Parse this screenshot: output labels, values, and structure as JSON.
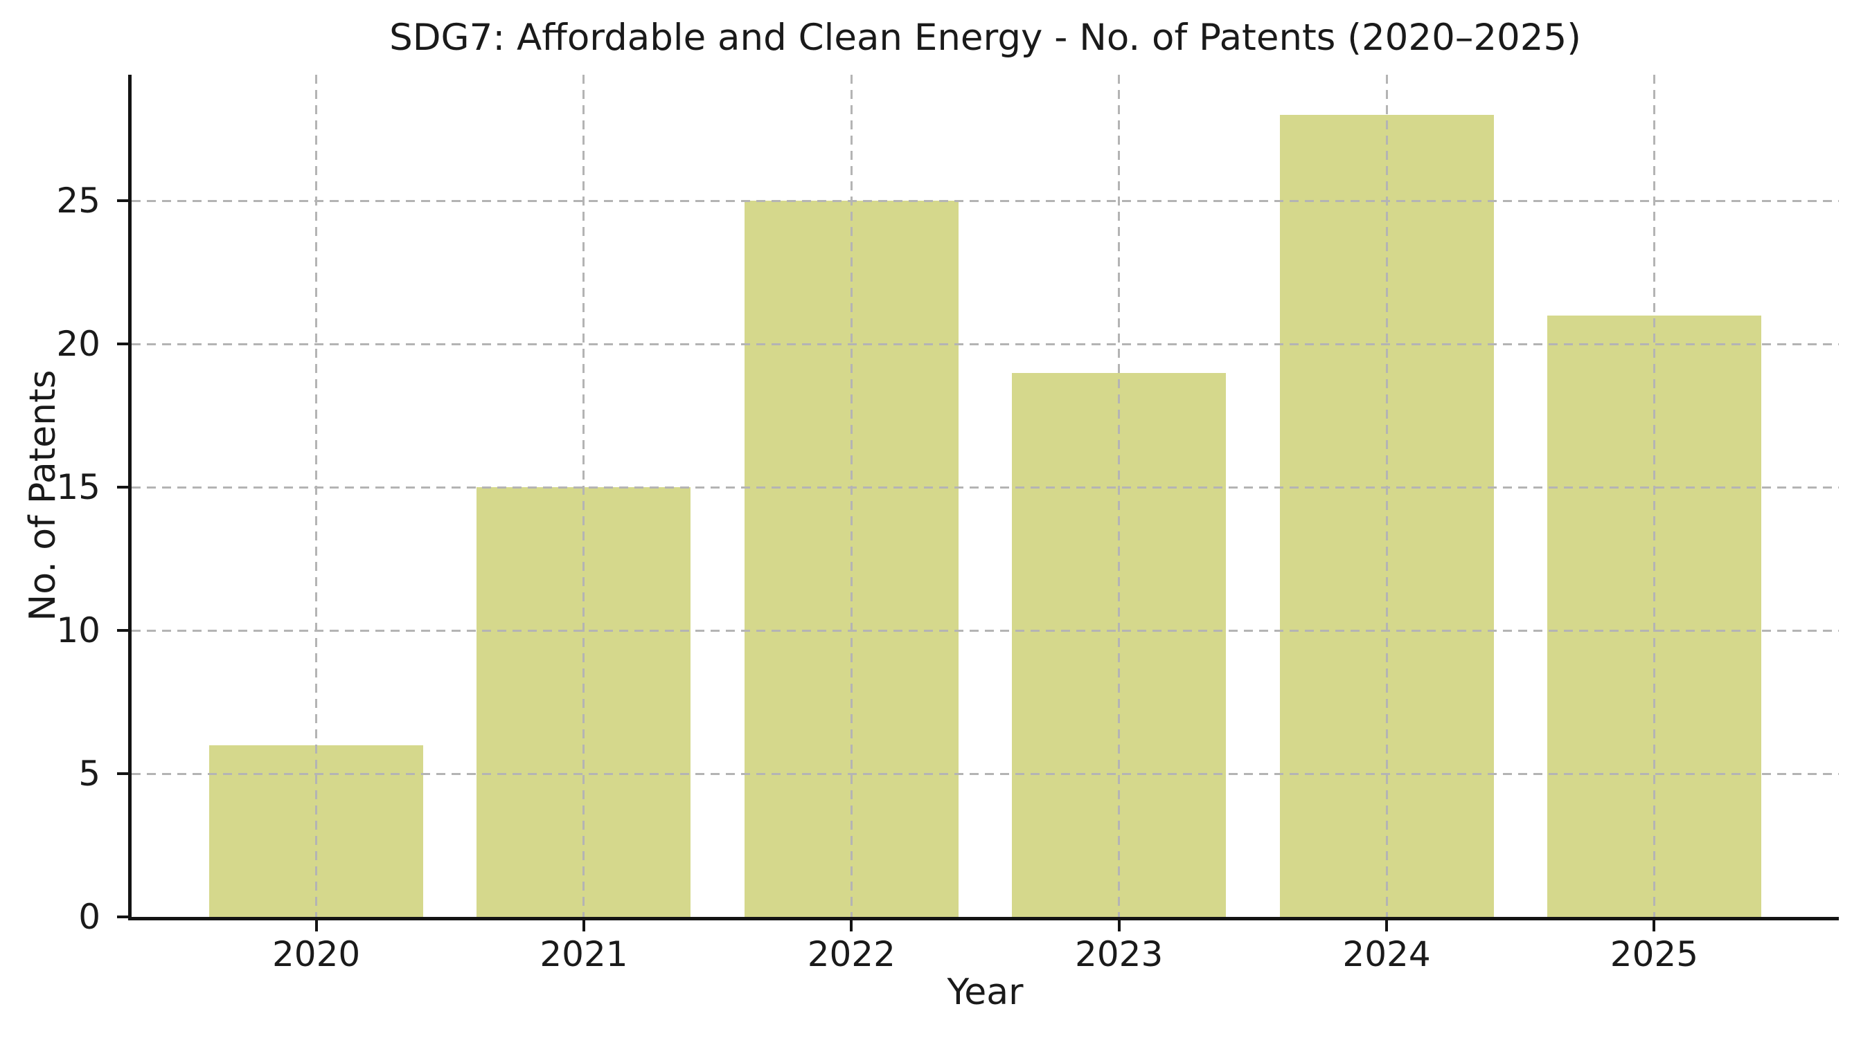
{
  "chart_data": {
    "type": "bar",
    "title": "SDG7: Affordable and Clean Energy - No. of Patents (2020–2025)",
    "xlabel": "Year",
    "ylabel": "No. of Patents",
    "categories": [
      "2020",
      "2021",
      "2022",
      "2023",
      "2024",
      "2025"
    ],
    "series": [
      {
        "name": "No. of Patents",
        "values": [
          6,
          15,
          25,
          19,
          28,
          21
        ]
      }
    ],
    "yticks": [
      0,
      5,
      10,
      15,
      20,
      25
    ],
    "ylim": [
      0,
      29.4
    ],
    "grid": "both-dashed",
    "grid_above_bars": true,
    "legend_position": "none",
    "bar_color": "#d5d88c",
    "grid_color": "#b4b4b4",
    "axis_color": "#141414",
    "text_color": "#1a1a1a",
    "background_color": "#ffffff"
  }
}
